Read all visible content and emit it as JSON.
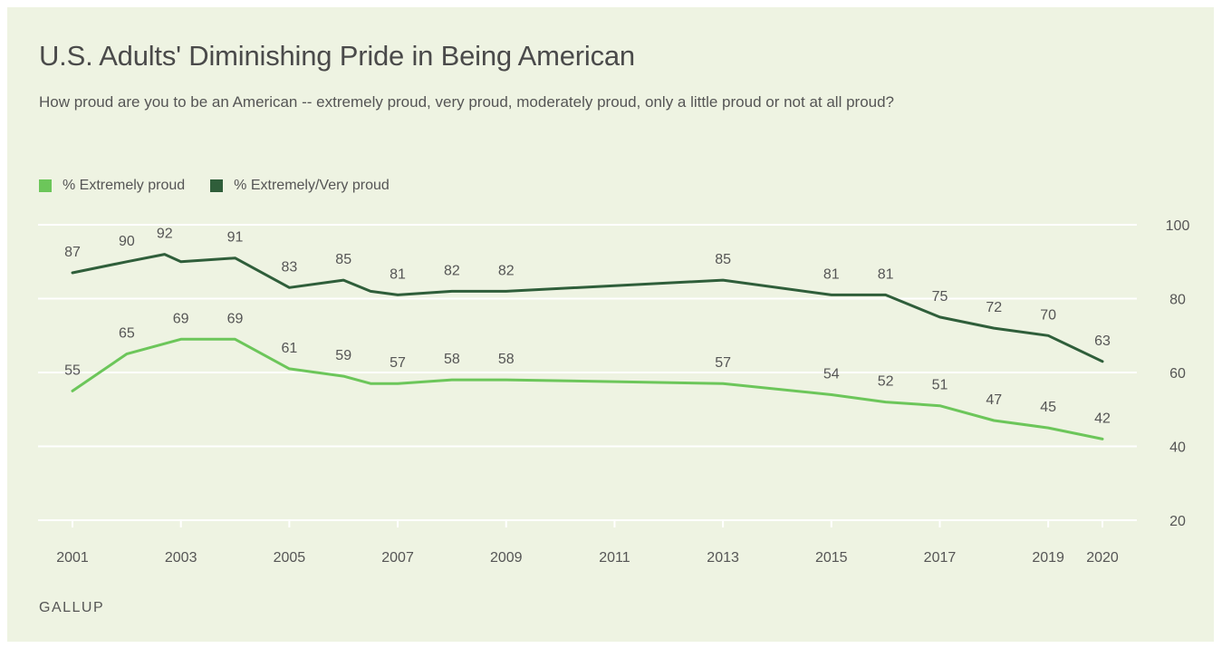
{
  "chart_data": {
    "type": "line",
    "title": "U.S. Adults' Diminishing Pride in Being American",
    "subtitle": "How proud are you to be an American -- extremely proud, very proud, moderately proud, only a little proud or not at all proud?",
    "source": "GALLUP",
    "xlabel": "",
    "ylabel": "",
    "ylim": [
      20,
      100
    ],
    "xlim": [
      2001,
      2020
    ],
    "y_ticks": [
      20,
      40,
      60,
      80,
      100
    ],
    "x_ticks": [
      {
        "value": 2001,
        "label": "2001"
      },
      {
        "value": 2003,
        "label": "2003"
      },
      {
        "value": 2005,
        "label": "2005"
      },
      {
        "value": 2007,
        "label": "2007"
      },
      {
        "value": 2009,
        "label": "2009"
      },
      {
        "value": 2011,
        "label": "2011"
      },
      {
        "value": 2013,
        "label": "2013"
      },
      {
        "value": 2015,
        "label": "2015"
      },
      {
        "value": 2017,
        "label": "2017"
      },
      {
        "value": 2019,
        "label": "2019"
      },
      {
        "value": 2020,
        "label": "2020"
      }
    ],
    "grid": true,
    "legend_position": "top-left",
    "series": [
      {
        "name": "% Extremely proud",
        "color": "#6cc65a",
        "points": [
          {
            "x": 2001.0,
            "y": 55,
            "label": "55"
          },
          {
            "x": 2002.0,
            "y": 65,
            "label": "65"
          },
          {
            "x": 2003.0,
            "y": 69,
            "label": "69"
          },
          {
            "x": 2004.0,
            "y": 69,
            "label": "69"
          },
          {
            "x": 2005.0,
            "y": 61,
            "label": "61"
          },
          {
            "x": 2006.0,
            "y": 59,
            "label": "59"
          },
          {
            "x": 2006.5,
            "y": 57,
            "label": ""
          },
          {
            "x": 2007.0,
            "y": 57,
            "label": "57"
          },
          {
            "x": 2008.0,
            "y": 58,
            "label": "58"
          },
          {
            "x": 2009.0,
            "y": 58,
            "label": "58"
          },
          {
            "x": 2013.0,
            "y": 57,
            "label": "57"
          },
          {
            "x": 2015.0,
            "y": 54,
            "label": "54"
          },
          {
            "x": 2016.0,
            "y": 52,
            "label": "52"
          },
          {
            "x": 2017.0,
            "y": 51,
            "label": "51"
          },
          {
            "x": 2018.0,
            "y": 47,
            "label": "47"
          },
          {
            "x": 2019.0,
            "y": 45,
            "label": "45"
          },
          {
            "x": 2020.0,
            "y": 42,
            "label": "42"
          }
        ]
      },
      {
        "name": "% Extremely/Very proud",
        "color": "#2f5e3a",
        "points": [
          {
            "x": 2001.0,
            "y": 87,
            "label": "87"
          },
          {
            "x": 2002.0,
            "y": 90,
            "label": "90"
          },
          {
            "x": 2002.7,
            "y": 92,
            "label": "92"
          },
          {
            "x": 2003.0,
            "y": 90,
            "label": ""
          },
          {
            "x": 2004.0,
            "y": 91,
            "label": "91"
          },
          {
            "x": 2005.0,
            "y": 83,
            "label": "83"
          },
          {
            "x": 2006.0,
            "y": 85,
            "label": "85"
          },
          {
            "x": 2006.5,
            "y": 82,
            "label": ""
          },
          {
            "x": 2007.0,
            "y": 81,
            "label": "81"
          },
          {
            "x": 2008.0,
            "y": 82,
            "label": "82"
          },
          {
            "x": 2009.0,
            "y": 82,
            "label": "82"
          },
          {
            "x": 2013.0,
            "y": 85,
            "label": "85"
          },
          {
            "x": 2015.0,
            "y": 81,
            "label": "81"
          },
          {
            "x": 2016.0,
            "y": 81,
            "label": "81"
          },
          {
            "x": 2017.0,
            "y": 75,
            "label": "75"
          },
          {
            "x": 2018.0,
            "y": 72,
            "label": "72"
          },
          {
            "x": 2019.0,
            "y": 70,
            "label": "70"
          },
          {
            "x": 2020.0,
            "y": 63,
            "label": "63"
          }
        ]
      }
    ]
  }
}
